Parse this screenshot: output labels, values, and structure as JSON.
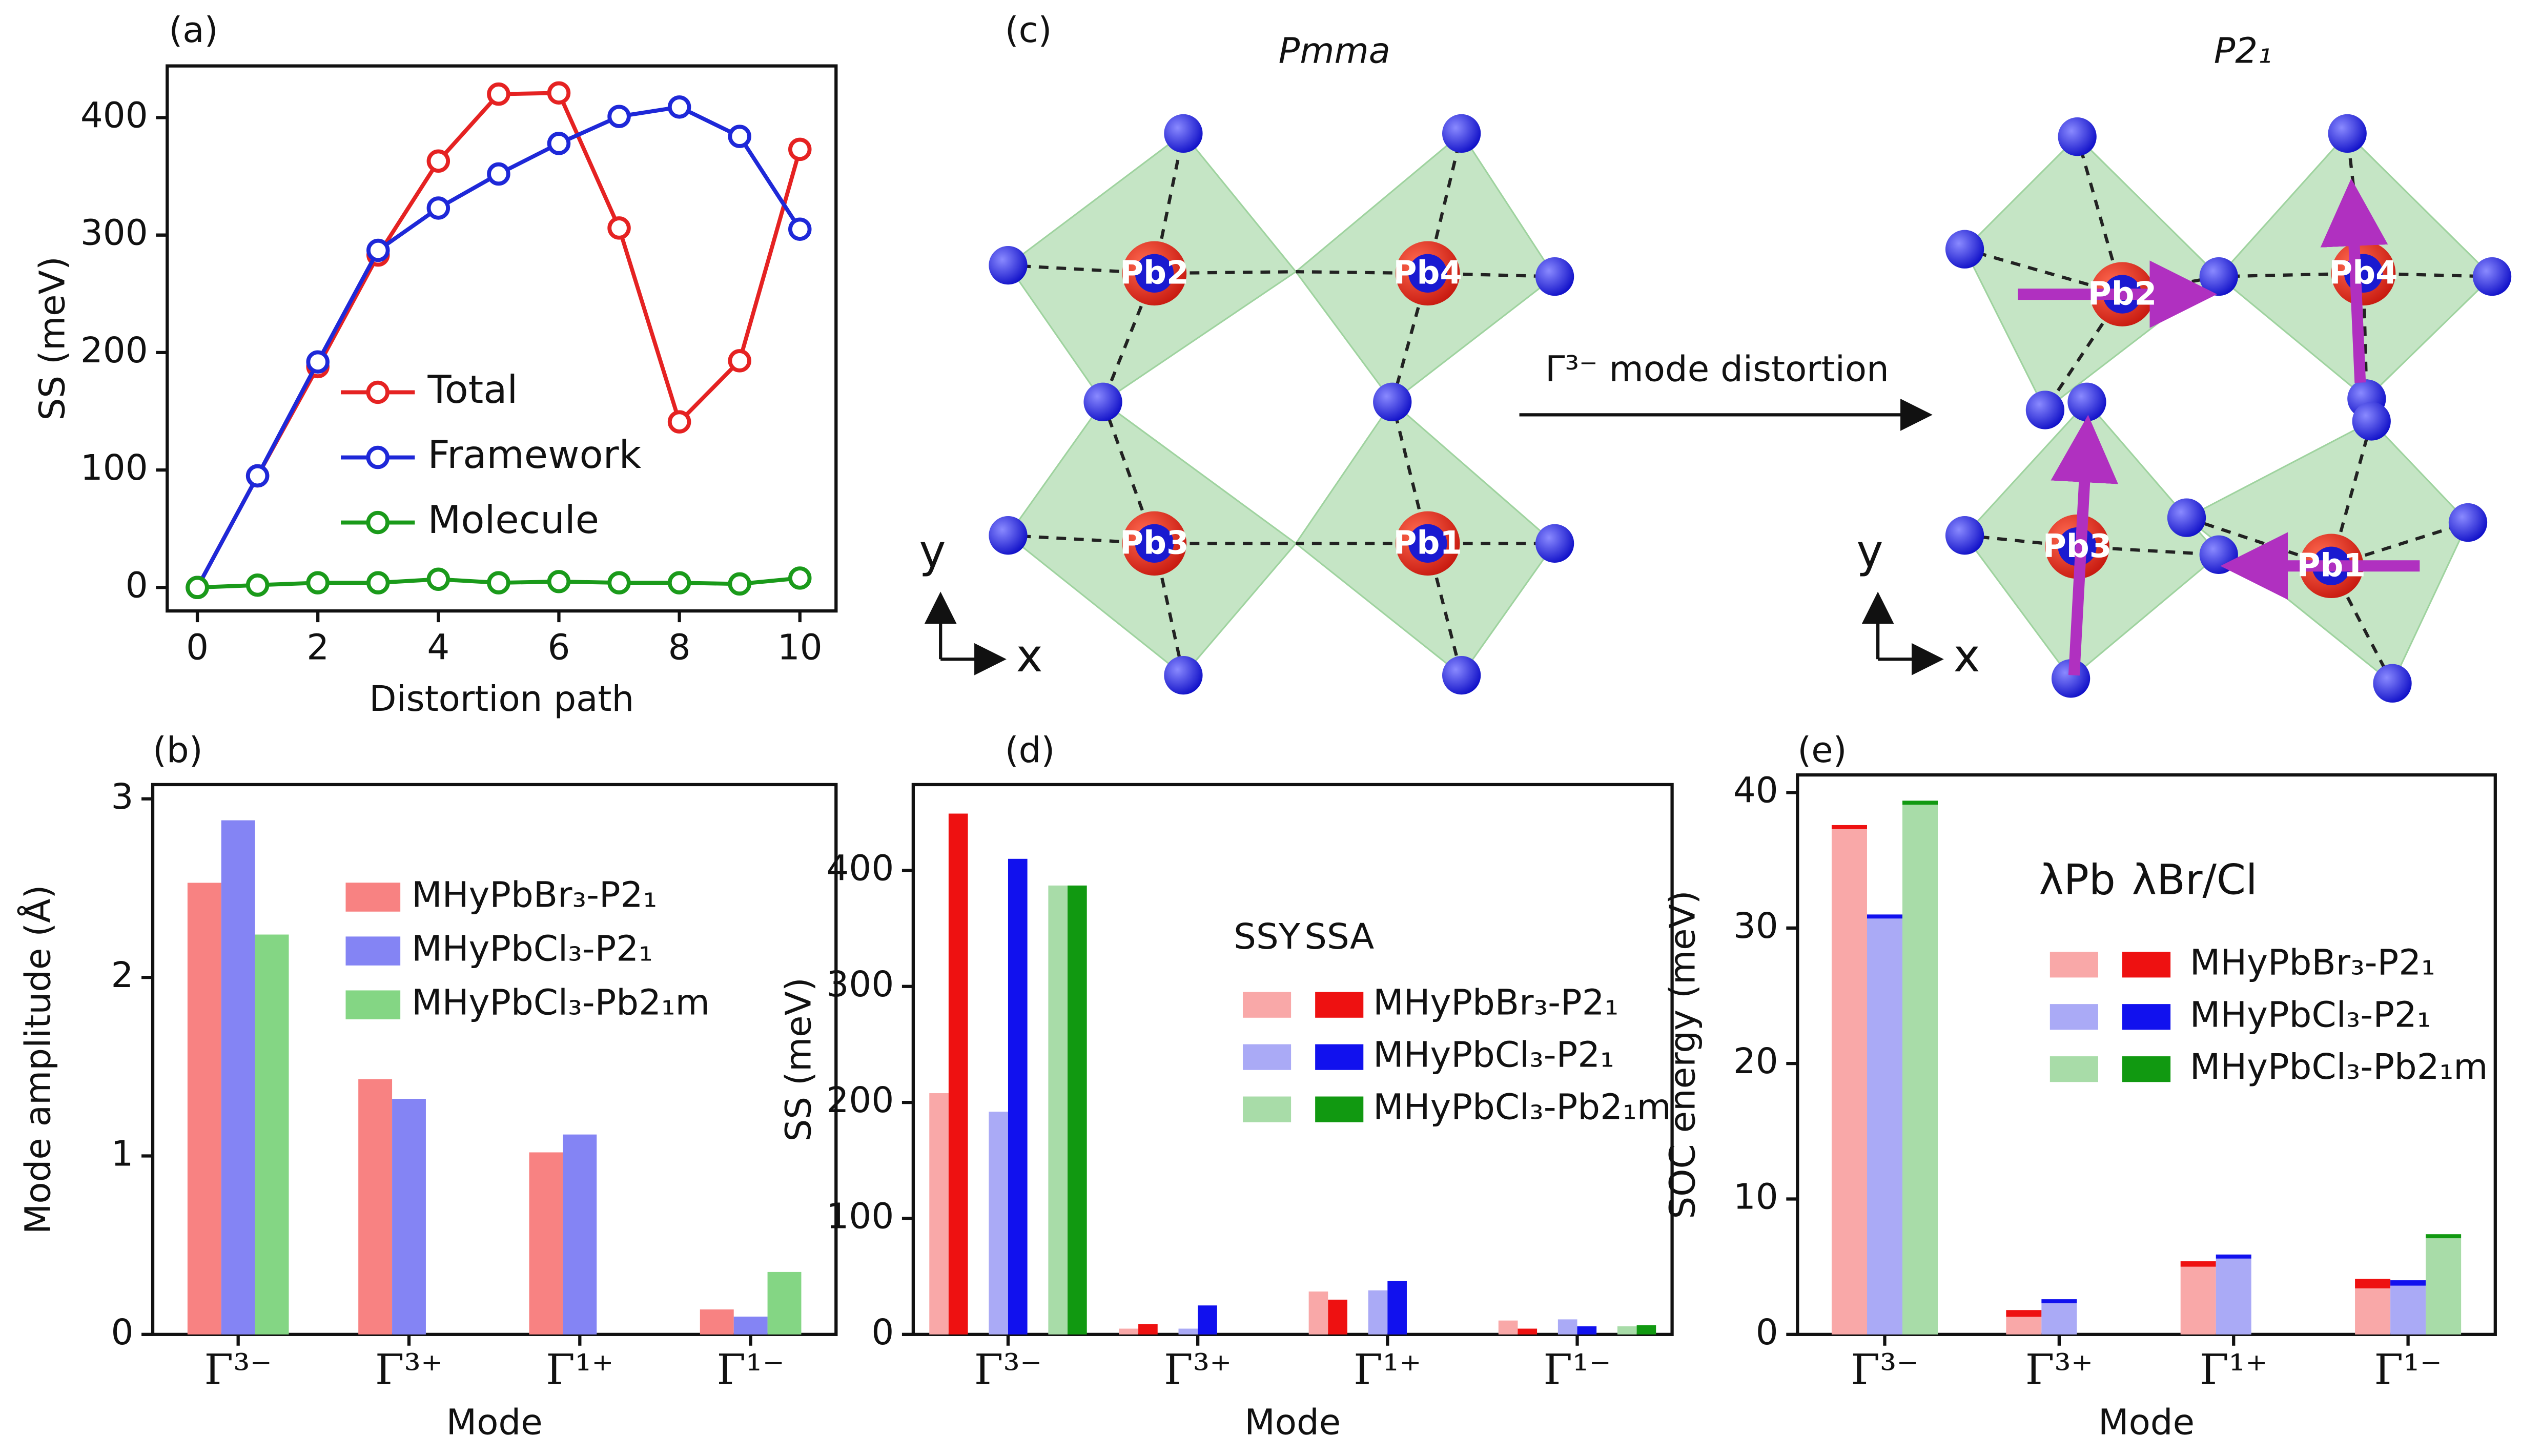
{
  "chart_data": [
    {
      "type": "line",
      "panel_label": "(a)",
      "xlabel": "Distortion path",
      "ylabel": "SS (meV)",
      "x": [
        0,
        1,
        2,
        3,
        4,
        5,
        6,
        7,
        8,
        9,
        10
      ],
      "xlim": [
        -0.5,
        10.6
      ],
      "xticks": [
        0,
        2,
        4,
        6,
        8,
        10
      ],
      "ylim": [
        -20,
        444
      ],
      "yticks": [
        0,
        100,
        200,
        300,
        400
      ],
      "series": [
        {
          "name": "Total",
          "color": "#e52222",
          "values": [
            0,
            95,
            188,
            283,
            363,
            420,
            421,
            306,
            141,
            193,
            373
          ]
        },
        {
          "name": "Framework",
          "color": "#1e28d8",
          "values": [
            0,
            95,
            192,
            287,
            323,
            352,
            378,
            401,
            409,
            384,
            305
          ]
        },
        {
          "name": "Molecule",
          "color": "#1a9a1a",
          "values": [
            0,
            2,
            4,
            4,
            7,
            4,
            5,
            4,
            4,
            3,
            8
          ]
        }
      ]
    },
    {
      "type": "bar",
      "panel_label": "(b)",
      "xlabel": "Mode",
      "ylabel": "Mode amplitude (Å)",
      "categories": [
        "Γ³⁻",
        "Γ³⁺",
        "Γ¹⁺",
        "Γ¹⁻"
      ],
      "ylim": [
        0,
        3.08
      ],
      "yticks": [
        0,
        1,
        2,
        3
      ],
      "series": [
        {
          "name": "MHyPbBr₃-P2₁",
          "color": "#f88282",
          "values": [
            2.53,
            1.43,
            1.02,
            0.14
          ]
        },
        {
          "name": "MHyPbCl₃-P2₁",
          "color": "#8484f4",
          "values": [
            2.88,
            1.32,
            1.12,
            0.1
          ]
        },
        {
          "name": "MHyPbCl₃-Pb2₁m",
          "color": "#84d684",
          "values": [
            2.24,
            null,
            null,
            0.35
          ]
        }
      ]
    },
    {
      "type": "paired_bar",
      "panel_label": "(d)",
      "xlabel": "Mode",
      "ylabel": "SS (meV)",
      "legend_header": [
        "SSY",
        "SSA"
      ],
      "categories": [
        "Γ³⁻",
        "Γ³⁺",
        "Γ¹⁺",
        "Γ¹⁻"
      ],
      "ylim": [
        0,
        474
      ],
      "yticks": [
        0,
        100,
        200,
        300,
        400
      ],
      "series": [
        {
          "name": "MHyPbBr₃-P2₁",
          "color_light": "#f9a8a8",
          "color_dark": "#ee1111",
          "ss_y": [
            208,
            5,
            37,
            12
          ],
          "ss_a": [
            449,
            9,
            30,
            5
          ]
        },
        {
          "name": "MHyPbCl₃-P2₁",
          "color_light": "#aaaaf6",
          "color_dark": "#1111ee",
          "ss_y": [
            192,
            5,
            38,
            13
          ],
          "ss_a": [
            410,
            25,
            46,
            7
          ]
        },
        {
          "name": "MHyPbCl₃-Pb2₁m",
          "color_light": "#a8dca8",
          "color_dark": "#119911",
          "ss_y": [
            387,
            null,
            null,
            7
          ],
          "ss_a": [
            387,
            null,
            null,
            8
          ]
        }
      ]
    },
    {
      "type": "stacked_bar",
      "panel_label": "(e)",
      "xlabel": "Mode",
      "ylabel": "SOC energy (meV)",
      "legend_header": [
        "λPb",
        "λBr/Cl"
      ],
      "categories": [
        "Γ³⁻",
        "Γ³⁺",
        "Γ¹⁺",
        "Γ¹⁻"
      ],
      "ylim": [
        0,
        41.3
      ],
      "yticks": [
        0,
        10,
        20,
        30,
        40
      ],
      "series": [
        {
          "name": "MHyPbBr₃-P2₁",
          "color_light": "#f9a8a8",
          "color_dark": "#ee1111",
          "lambda_pb": [
            37.3,
            1.3,
            5.0,
            3.4
          ],
          "lambda_br_cl": [
            0.3,
            0.5,
            0.4,
            0.7
          ]
        },
        {
          "name": "MHyPbCl₃-P2₁",
          "color_light": "#aaaaf6",
          "color_dark": "#1111ee",
          "lambda_pb": [
            30.7,
            2.3,
            5.6,
            3.6
          ],
          "lambda_br_cl": [
            0.3,
            0.3,
            0.3,
            0.4
          ]
        },
        {
          "name": "MHyPbCl₃-Pb2₁m",
          "color_light": "#a8dca8",
          "color_dark": "#119911",
          "lambda_pb": [
            39.1,
            null,
            null,
            7.1
          ],
          "lambda_br_cl": [
            0.3,
            null,
            null,
            0.3
          ]
        }
      ]
    }
  ],
  "diagram": {
    "panel_label": "(c)",
    "left_title": "Pmma",
    "right_title": "P2₁",
    "arrow_label": "Γ³⁻ mode distortion",
    "left_atoms": [
      "Pb2",
      "Pb4",
      "Pb3",
      "Pb1"
    ],
    "right_atoms": [
      "Pb2",
      "Pb4",
      "Pb3",
      "Pb1"
    ],
    "axis_y": "y",
    "axis_x": "x"
  }
}
